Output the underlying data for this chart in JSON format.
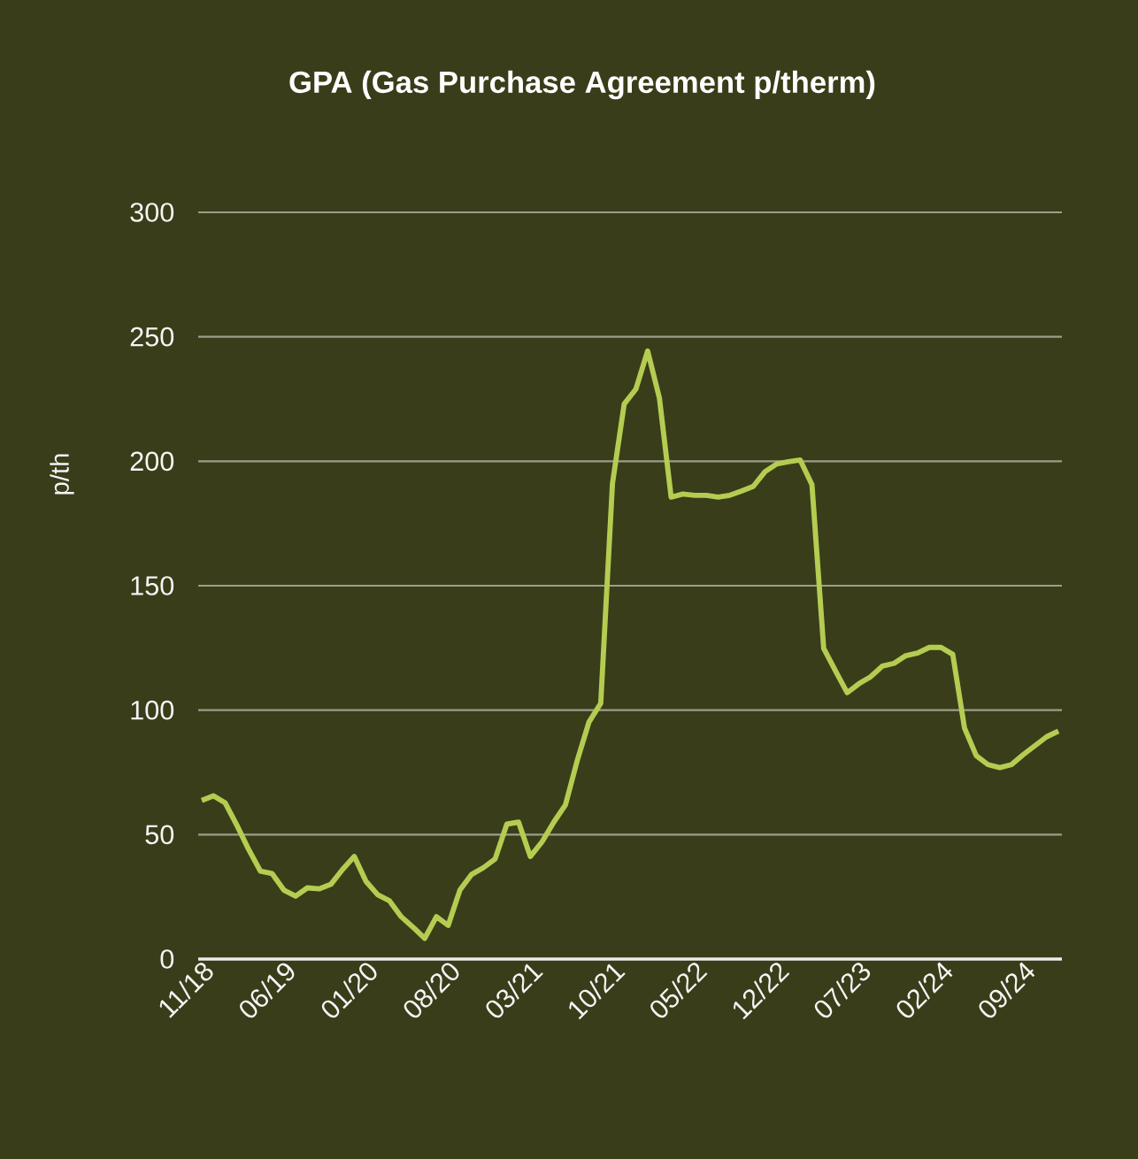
{
  "chart_data": {
    "type": "line",
    "title": "GPA (Gas Purchase Agreement p/therm)",
    "ylabel": "p/th",
    "categories": [
      "11/18",
      null,
      null,
      null,
      null,
      null,
      null,
      "06/19",
      null,
      null,
      null,
      null,
      null,
      null,
      "01/20",
      null,
      null,
      null,
      null,
      null,
      null,
      "08/20",
      null,
      null,
      null,
      null,
      null,
      null,
      "03/21",
      null,
      null,
      null,
      null,
      null,
      null,
      "10/21",
      null,
      null,
      null,
      null,
      null,
      null,
      "05/22",
      null,
      null,
      null,
      null,
      null,
      null,
      "12/22",
      null,
      null,
      null,
      null,
      null,
      null,
      "07/23",
      null,
      null,
      null,
      null,
      null,
      null,
      "02/24",
      null,
      null,
      null,
      null,
      null,
      null,
      "09/24",
      null,
      null,
      null
    ],
    "series": [
      {
        "color": "#b5cc52",
        "values": [
          63.7,
          65.6,
          62.7,
          53.7,
          44,
          35.3,
          34.3,
          27.7,
          25.3,
          28.6,
          28.2,
          30,
          36,
          41.2,
          31.2,
          25.8,
          23.4,
          17,
          12.8,
          8.3,
          17,
          13.5,
          27.7,
          34,
          36.7,
          40.2,
          54.2,
          55,
          41.2,
          47.1,
          55,
          62,
          79.8,
          95.2,
          102.7,
          191,
          223,
          229,
          244.3,
          225.4,
          185.6,
          186.8,
          186.3,
          186.3,
          185.6,
          186.3,
          188,
          189.9,
          195.8,
          198.9,
          199.8,
          200.5,
          190.6,
          124.8,
          115.8,
          107,
          110.6,
          113.4,
          117.7,
          118.8,
          121.9,
          122.9,
          125.2,
          125.2,
          122.4,
          92.8,
          81.7,
          78.1,
          76.9,
          78.1,
          82.1,
          85.7,
          89.3,
          91.6
        ]
      }
    ],
    "ylim": [
      0,
      300
    ],
    "yticks": [
      0,
      50,
      100,
      150,
      200,
      250,
      300
    ],
    "grid": "y",
    "legend": false,
    "marker": "none",
    "line_style": "solid"
  }
}
